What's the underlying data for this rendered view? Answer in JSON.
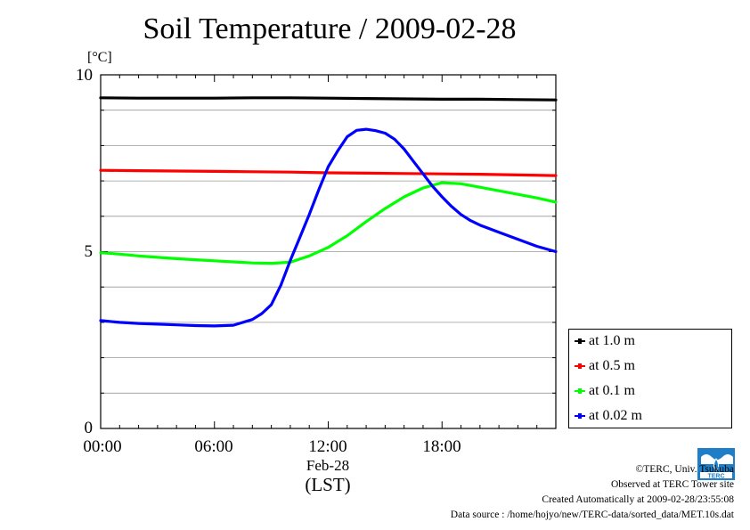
{
  "title": "Soil Temperature / 2009-02-28",
  "unit": "[°C]",
  "chart_data": {
    "type": "line",
    "title": "Soil Temperature / 2009-02-28",
    "ylabel": "[°C]",
    "xlabel": "(LST)",
    "x_date_label": "Feb-28",
    "x_ticks": [
      "00:00",
      "06:00",
      "12:00",
      "18:00"
    ],
    "y_ticks": [
      "0",
      "5",
      "10"
    ],
    "xlim": [
      0,
      24
    ],
    "ylim": [
      0,
      10
    ],
    "grid": true,
    "legend_position": "bottom-right",
    "series": [
      {
        "name": "at 1.0 m",
        "color": "#000000",
        "x": [
          0,
          2,
          4,
          6,
          8,
          10,
          12,
          14,
          16,
          18,
          20,
          22,
          24
        ],
        "y": [
          9.35,
          9.34,
          9.34,
          9.34,
          9.35,
          9.35,
          9.34,
          9.33,
          9.32,
          9.31,
          9.31,
          9.3,
          9.29
        ]
      },
      {
        "name": "at 0.5 m",
        "color": "#ff0000",
        "x": [
          0,
          2,
          4,
          6,
          8,
          10,
          12,
          14,
          16,
          18,
          20,
          22,
          24
        ],
        "y": [
          7.3,
          7.29,
          7.28,
          7.27,
          7.26,
          7.25,
          7.23,
          7.22,
          7.21,
          7.2,
          7.19,
          7.17,
          7.15
        ]
      },
      {
        "name": "at 0.1 m",
        "color": "#00ff00",
        "x": [
          0,
          1,
          2,
          3,
          4,
          5,
          6,
          7,
          8,
          9,
          10,
          11,
          12,
          13,
          14,
          15,
          16,
          17,
          18,
          19,
          20,
          21,
          22,
          23,
          24
        ],
        "y": [
          4.97,
          4.93,
          4.88,
          4.84,
          4.8,
          4.77,
          4.74,
          4.71,
          4.68,
          4.67,
          4.7,
          4.88,
          5.12,
          5.45,
          5.85,
          6.22,
          6.55,
          6.8,
          6.95,
          6.92,
          6.82,
          6.72,
          6.62,
          6.52,
          6.4
        ]
      },
      {
        "name": "at 0.02 m",
        "color": "#0000ff",
        "x": [
          0,
          1,
          2,
          3,
          4,
          5,
          6,
          7,
          8,
          8.5,
          9,
          9.5,
          10,
          10.5,
          11,
          11.5,
          12,
          12.5,
          13,
          13.5,
          14,
          14.5,
          15,
          15.5,
          16,
          16.5,
          17,
          17.5,
          18,
          18.5,
          19,
          19.5,
          20,
          21,
          22,
          23,
          24
        ],
        "y": [
          3.05,
          3.0,
          2.97,
          2.95,
          2.93,
          2.91,
          2.9,
          2.92,
          3.08,
          3.25,
          3.5,
          4.05,
          4.75,
          5.4,
          6.05,
          6.75,
          7.4,
          7.85,
          8.25,
          8.43,
          8.46,
          8.42,
          8.35,
          8.18,
          7.9,
          7.55,
          7.2,
          6.85,
          6.55,
          6.28,
          6.05,
          5.88,
          5.75,
          5.55,
          5.35,
          5.15,
          5.0
        ]
      }
    ]
  },
  "footer": {
    "copyright": "©TERC, Univ. Tsukuba",
    "observed": "Observed at TERC Tower site",
    "created": "Created Automatically at 2009-02-28/23:55:08",
    "source": "Data source : /home/hojyo/new/TERC-data/sorted_data/MET.10s.dat",
    "logo_text": "TERC"
  }
}
